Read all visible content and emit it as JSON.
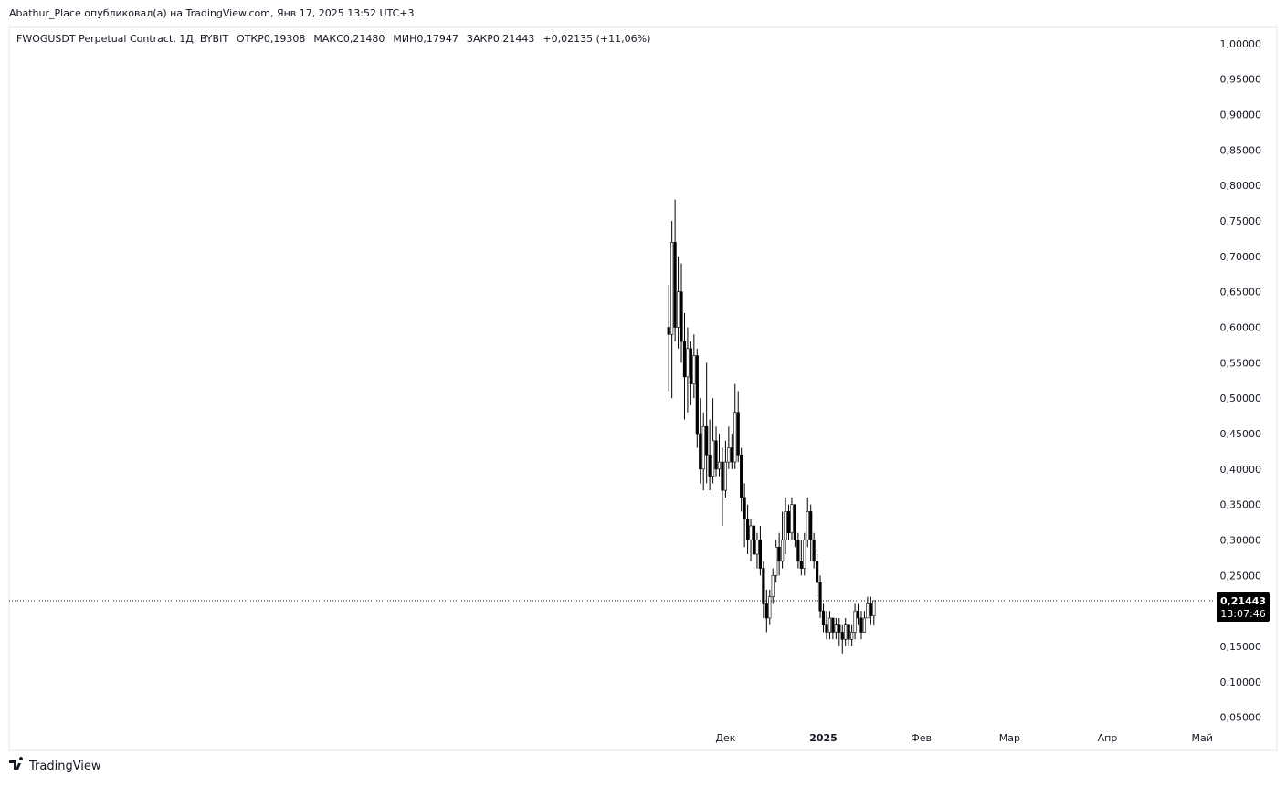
{
  "header": {
    "published": "Abathur_Place опубликовал(а) на TradingView.com, Янв 17, 2025 13:52 UTC+3"
  },
  "footer": {
    "brand": "TradingView"
  },
  "chart_data": {
    "type": "candlestick",
    "symbol": "FWOGUSDT Perpetual Contract, 1Д, BYBIT",
    "ohlc_legend": [
      {
        "label": "ОТКР",
        "value": "0,19308"
      },
      {
        "label": "МАКС",
        "value": "0,21480"
      },
      {
        "label": "МИН",
        "value": "0,17947"
      },
      {
        "label": "ЗАКР",
        "value": "0,21443"
      }
    ],
    "change": "+0,02135 (+11,06%)",
    "last_price": {
      "value": 0.21443,
      "label": "0,21443"
    },
    "countdown": "13:07:46",
    "up_color": "#ffffff",
    "down_color": "#000000",
    "wick_color": "#000000",
    "xlim": [
      -258,
      124
    ],
    "xticks": [
      {
        "value": -31,
        "label": "Дек"
      },
      {
        "value": 0,
        "label": "2025"
      },
      {
        "value": 31,
        "label": "Фев"
      },
      {
        "value": 59,
        "label": "Мар"
      },
      {
        "value": 90,
        "label": "Апр"
      },
      {
        "value": 120,
        "label": "Май"
      }
    ],
    "ylim": [
      0.038,
      1.023
    ],
    "yticks": [
      {
        "value": 0.05,
        "label": "0,05000"
      },
      {
        "value": 0.1,
        "label": "0,10000"
      },
      {
        "value": 0.15,
        "label": "0,15000"
      },
      {
        "value": 0.2,
        "label": "0,20000"
      },
      {
        "value": 0.25,
        "label": "0,25000"
      },
      {
        "value": 0.3,
        "label": "0,30000"
      },
      {
        "value": 0.35,
        "label": "0,35000"
      },
      {
        "value": 0.4,
        "label": "0,40000"
      },
      {
        "value": 0.45,
        "label": "0,45000"
      },
      {
        "value": 0.5,
        "label": "0,50000"
      },
      {
        "value": 0.55,
        "label": "0,55000"
      },
      {
        "value": 0.6,
        "label": "0,60000"
      },
      {
        "value": 0.65,
        "label": "0,65000"
      },
      {
        "value": 0.7,
        "label": "0,70000"
      },
      {
        "value": 0.75,
        "label": "0,75000"
      },
      {
        "value": 0.8,
        "label": "0,80000"
      },
      {
        "value": 0.85,
        "label": "0,85000"
      },
      {
        "value": 0.9,
        "label": "0,90000"
      },
      {
        "value": 0.95,
        "label": "0,95000"
      },
      {
        "value": 1.0,
        "label": "1,00000"
      }
    ],
    "series": [
      {
        "x": [
          -49,
          -48,
          -47,
          -46,
          -45,
          -44,
          -43,
          -42,
          -41,
          -40,
          -39,
          -38,
          -37,
          -36,
          -35,
          -34,
          -33,
          -32,
          -31,
          -30,
          -29,
          -28,
          -27,
          -26,
          -25,
          -24,
          -23,
          -22,
          -21,
          -20,
          -19,
          -18,
          -17,
          -16,
          -15,
          -14,
          -13,
          -12,
          -11,
          -10,
          -9,
          -8,
          -7,
          -6,
          -5,
          -4,
          -3,
          -2,
          -1,
          0,
          1,
          2,
          3,
          4,
          5,
          6,
          7,
          8,
          9,
          10,
          11,
          12,
          13,
          14,
          15,
          16
        ],
        "open": [
          0.6,
          0.59,
          0.72,
          0.6,
          0.65,
          0.58,
          0.53,
          0.57,
          0.52,
          0.56,
          0.45,
          0.4,
          0.46,
          0.42,
          0.39,
          0.44,
          0.4,
          0.41,
          0.37,
          0.41,
          0.43,
          0.41,
          0.48,
          0.42,
          0.36,
          0.33,
          0.3,
          0.32,
          0.28,
          0.3,
          0.26,
          0.21,
          0.19,
          0.22,
          0.25,
          0.29,
          0.27,
          0.3,
          0.34,
          0.31,
          0.35,
          0.3,
          0.27,
          0.26,
          0.3,
          0.34,
          0.3,
          0.27,
          0.24,
          0.2,
          0.18,
          0.17,
          0.19,
          0.17,
          0.18,
          0.17,
          0.16,
          0.18,
          0.16,
          0.17,
          0.2,
          0.19,
          0.17,
          0.19,
          0.21,
          0.19308
        ],
        "high": [
          0.66,
          0.75,
          0.78,
          0.7,
          0.69,
          0.62,
          0.6,
          0.58,
          0.59,
          0.57,
          0.5,
          0.48,
          0.55,
          0.47,
          0.5,
          0.46,
          0.45,
          0.43,
          0.44,
          0.46,
          0.45,
          0.52,
          0.51,
          0.43,
          0.38,
          0.35,
          0.33,
          0.33,
          0.31,
          0.32,
          0.27,
          0.23,
          0.23,
          0.26,
          0.3,
          0.31,
          0.34,
          0.36,
          0.35,
          0.36,
          0.35,
          0.31,
          0.3,
          0.31,
          0.36,
          0.35,
          0.31,
          0.28,
          0.25,
          0.21,
          0.2,
          0.2,
          0.19,
          0.19,
          0.19,
          0.18,
          0.19,
          0.18,
          0.18,
          0.21,
          0.21,
          0.2,
          0.2,
          0.22,
          0.22,
          0.2148
        ],
        "low": [
          0.51,
          0.5,
          0.58,
          0.57,
          0.55,
          0.47,
          0.48,
          0.49,
          0.5,
          0.43,
          0.38,
          0.37,
          0.38,
          0.37,
          0.38,
          0.39,
          0.39,
          0.32,
          0.36,
          0.4,
          0.4,
          0.4,
          0.41,
          0.34,
          0.29,
          0.28,
          0.27,
          0.26,
          0.26,
          0.25,
          0.19,
          0.17,
          0.18,
          0.21,
          0.24,
          0.25,
          0.26,
          0.28,
          0.3,
          0.3,
          0.29,
          0.26,
          0.25,
          0.25,
          0.29,
          0.27,
          0.26,
          0.22,
          0.19,
          0.17,
          0.16,
          0.16,
          0.16,
          0.16,
          0.15,
          0.14,
          0.15,
          0.15,
          0.15,
          0.16,
          0.18,
          0.16,
          0.17,
          0.19,
          0.18,
          0.17947
        ],
        "close": [
          0.59,
          0.72,
          0.6,
          0.65,
          0.58,
          0.53,
          0.57,
          0.52,
          0.56,
          0.45,
          0.4,
          0.46,
          0.42,
          0.39,
          0.44,
          0.4,
          0.41,
          0.37,
          0.41,
          0.43,
          0.41,
          0.48,
          0.42,
          0.36,
          0.33,
          0.3,
          0.32,
          0.28,
          0.3,
          0.26,
          0.21,
          0.19,
          0.22,
          0.25,
          0.29,
          0.27,
          0.3,
          0.34,
          0.31,
          0.35,
          0.3,
          0.27,
          0.26,
          0.3,
          0.34,
          0.3,
          0.27,
          0.24,
          0.2,
          0.18,
          0.17,
          0.19,
          0.17,
          0.18,
          0.17,
          0.16,
          0.18,
          0.16,
          0.17,
          0.2,
          0.19,
          0.17,
          0.19,
          0.21,
          0.19308,
          0.21443
        ]
      }
    ]
  }
}
